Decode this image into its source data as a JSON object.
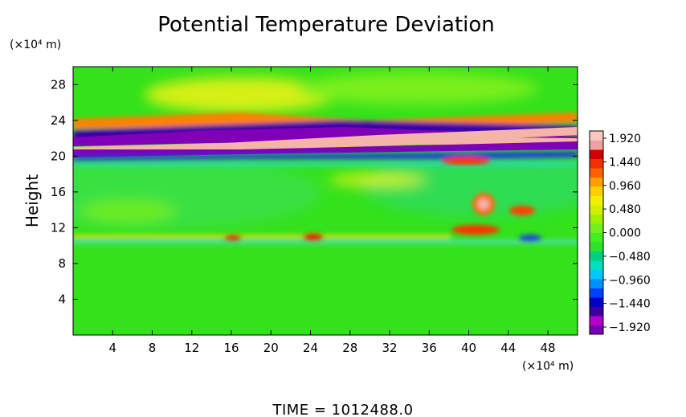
{
  "chart_data": {
    "type": "heatmap",
    "title": "Potential Temperature Deviation",
    "ylabel": "Height",
    "yunit_label": "(×10⁴ m)",
    "xunit_label": "(×10⁴ m)",
    "xticks": [
      "4",
      "8",
      "12",
      "16",
      "20",
      "24",
      "28",
      "32",
      "36",
      "40",
      "44",
      "48"
    ],
    "yticks": [
      "4",
      "8",
      "12",
      "16",
      "20",
      "24",
      "28"
    ],
    "xlim": [
      0,
      51
    ],
    "ylim": [
      0,
      30
    ],
    "colorbar": {
      "labels": [
        "1.920",
        "1.440",
        "0.960",
        "0.480",
        "0.000",
        "−0.480",
        "−0.960",
        "−1.440",
        "−1.920"
      ],
      "range": [
        -1.92,
        1.92
      ],
      "colors": [
        "#7a00b4",
        "#b400c8",
        "#3a00a0",
        "#0000c8",
        "#0040ff",
        "#0090ff",
        "#00c8ff",
        "#00e0c0",
        "#00d080",
        "#30e030",
        "#40f020",
        "#70f020",
        "#a0f000",
        "#d0f000",
        "#f0f000",
        "#ffd000",
        "#ffa000",
        "#ff6000",
        "#f03000",
        "#d00000",
        "#f0a0a0",
        "#f8c8c0"
      ]
    },
    "footer": "TIME  =  1012488.0"
  }
}
